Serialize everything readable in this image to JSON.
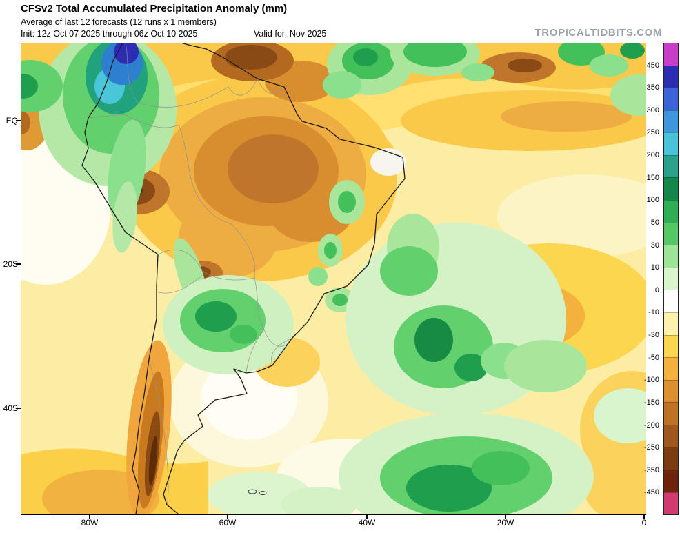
{
  "header": {
    "title": "CFSv2 Total Accumulated Precipitation Anomaly (mm)",
    "subtitle": "Average of last 12 forecasts (12 runs x 1 members)",
    "init_label": "Init: 12z Oct 07 2025 through 06z Oct 10 2025",
    "valid_label": "Valid for: Nov 2025",
    "watermark": "TROPICALTIDBITS.COM"
  },
  "map": {
    "region": "South America",
    "y_axis_labels": [
      "EQ",
      "20S",
      "40S"
    ],
    "x_axis_labels": [
      "80W",
      "60W",
      "40W",
      "20W",
      "0"
    ]
  },
  "colorbar": {
    "tick_labels": [
      "450",
      "350",
      "300",
      "250",
      "200",
      "150",
      "100",
      "50",
      "30",
      "10",
      "0",
      "-10",
      "-30",
      "-50",
      "-100",
      "-150",
      "-200",
      "-250",
      "-350",
      "-450"
    ],
    "segment_colors_top_to_bottom": [
      "#c83ec8",
      "#2d2db4",
      "#3a62d9",
      "#3e97dd",
      "#49c3d9",
      "#2ba18c",
      "#13864a",
      "#2fae53",
      "#55c763",
      "#9ce595",
      "#d9f5cd",
      "#ffffff",
      "#fdf2ad",
      "#fcd64e",
      "#f4b13e",
      "#dd9030",
      "#bf7226",
      "#9f571d",
      "#7c3c12",
      "#6e2409",
      "#d13a6e"
    ],
    "anomaly_positive_color_family": "green-blue-magenta",
    "anomaly_negative_color_family": "yellow-brown-red-pink"
  }
}
